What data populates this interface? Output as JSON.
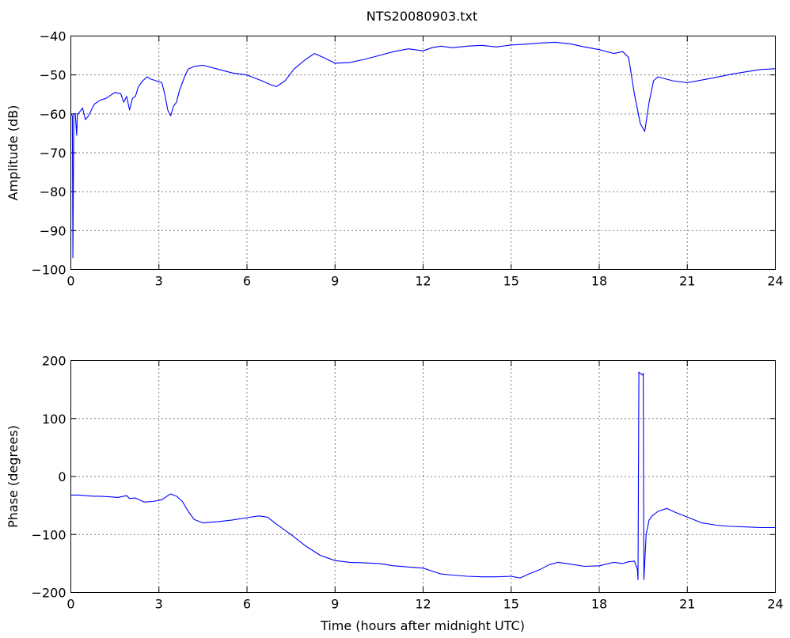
{
  "chart_data": [
    {
      "type": "line",
      "title": "NTS20080903.txt",
      "xlabel": "",
      "ylabel": "Amplitude (dB)",
      "xlim": [
        0,
        24
      ],
      "ylim": [
        -100,
        -40
      ],
      "xticks": [
        "0",
        "3",
        "6",
        "9",
        "12",
        "15",
        "18",
        "21",
        "24"
      ],
      "yticks": [
        "-40",
        "-50",
        "-60",
        "-70",
        "-80",
        "-90",
        "-100"
      ],
      "grid": true,
      "color": "#0000ff",
      "series": [
        {
          "x": [
            0,
            0.05,
            0.07,
            0.1,
            0.15,
            0.2,
            0.22,
            0.25,
            0.3,
            0.4,
            0.5,
            0.6,
            0.8,
            1.0,
            1.2,
            1.5,
            1.7,
            1.8,
            1.9,
            2.0,
            2.1,
            2.2,
            2.3,
            2.45,
            2.6,
            2.7,
            2.9,
            3.1,
            3.2,
            3.3,
            3.4,
            3.5,
            3.6,
            3.7,
            3.8,
            3.9,
            4.0,
            4.2,
            4.5,
            5.0,
            5.5,
            6.0,
            6.5,
            6.8,
            7.0,
            7.3,
            7.6,
            8.0,
            8.3,
            8.6,
            9.0,
            9.5,
            10.0,
            10.5,
            11.0,
            11.5,
            12.0,
            12.3,
            12.6,
            13.0,
            13.5,
            14.0,
            14.5,
            15.0,
            15.5,
            16.0,
            16.5,
            17.0,
            17.5,
            18.0,
            18.5,
            18.8,
            19.0,
            19.2,
            19.4,
            19.55,
            19.7,
            19.85,
            20.0,
            20.5,
            21.0,
            21.5,
            22.0,
            22.5,
            23.0,
            23.5,
            24.0
          ],
          "y": [
            -60,
            -60.5,
            -97,
            -60,
            -60,
            -65.5,
            -60,
            -60,
            -59.5,
            -58.5,
            -61.5,
            -60.5,
            -57.5,
            -56.5,
            -56,
            -54.5,
            -54.8,
            -57,
            -55.5,
            -59,
            -56,
            -55.5,
            -53,
            -51.5,
            -50.5,
            -51,
            -51.5,
            -52,
            -55,
            -59,
            -60.5,
            -58,
            -57,
            -54,
            -52,
            -50,
            -48.5,
            -47.8,
            -47.5,
            -48.5,
            -49.5,
            -50,
            -51.5,
            -52.5,
            -53,
            -51.5,
            -48.5,
            -46,
            -44.5,
            -45.5,
            -47,
            -46.8,
            -46,
            -45,
            -44,
            -43.3,
            -43.8,
            -43,
            -42.6,
            -43,
            -42.6,
            -42.4,
            -42.8,
            -42.3,
            -42.1,
            -41.8,
            -41.6,
            -42,
            -42.8,
            -43.5,
            -44.5,
            -44,
            -45.5,
            -55,
            -62.5,
            -64.5,
            -57,
            -51.5,
            -50.5,
            -51.5,
            -52,
            -51.3,
            -50.6,
            -49.8,
            -49.2,
            -48.6,
            -48.4
          ]
        }
      ]
    },
    {
      "type": "line",
      "title": "",
      "xlabel": "Time (hours after midnight UTC)",
      "ylabel": "Phase (degrees)",
      "xlim": [
        0,
        24
      ],
      "ylim": [
        -200,
        200
      ],
      "xticks": [
        "0",
        "3",
        "6",
        "9",
        "12",
        "15",
        "18",
        "21",
        "24"
      ],
      "yticks": [
        "200",
        "100",
        "0",
        "-100",
        "-200"
      ],
      "grid": true,
      "color": "#0000ff",
      "series": [
        {
          "x": [
            0,
            0.3,
            0.5,
            0.8,
            1.0,
            1.3,
            1.6,
            1.9,
            2.0,
            2.2,
            2.5,
            2.8,
            3.1,
            3.3,
            3.4,
            3.6,
            3.8,
            4.0,
            4.2,
            4.5,
            5.0,
            5.5,
            6.0,
            6.4,
            6.7,
            7.0,
            7.5,
            8.0,
            8.5,
            9.0,
            9.5,
            10.0,
            10.5,
            11.0,
            11.5,
            12.0,
            12.3,
            12.6,
            13.0,
            13.5,
            14.0,
            14.5,
            15.0,
            15.3,
            15.6,
            16.0,
            16.3,
            16.6,
            17.0,
            17.5,
            18.0,
            18.5,
            18.8,
            19.0,
            19.2,
            19.3,
            19.32,
            19.35,
            19.48,
            19.5,
            19.52,
            19.6,
            19.7,
            19.8,
            20.0,
            20.3,
            20.6,
            21.0,
            21.5,
            22.0,
            22.5,
            23.0,
            23.5,
            24.0
          ],
          "y": [
            -32,
            -32,
            -33,
            -34,
            -34,
            -35,
            -36,
            -33,
            -38,
            -37,
            -44,
            -43,
            -40,
            -33,
            -30,
            -34,
            -43,
            -60,
            -74,
            -80,
            -78,
            -75,
            -71,
            -68,
            -70,
            -82,
            -100,
            -120,
            -136,
            -145,
            -148,
            -149,
            -150,
            -154,
            -156,
            -158,
            -163,
            -168,
            -170,
            -172,
            -173,
            -173,
            -172,
            -175,
            -168,
            -160,
            -152,
            -148,
            -151,
            -155,
            -154,
            -148,
            -150,
            -147,
            -146,
            -160,
            -178,
            180,
            175,
            178,
            -178,
            -100,
            -75,
            -68,
            -60,
            -55,
            -62,
            -70,
            -80,
            -84,
            -86,
            -87,
            -88,
            -88
          ]
        }
      ]
    }
  ]
}
